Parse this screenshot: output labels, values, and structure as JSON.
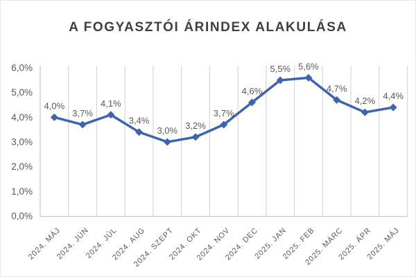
{
  "chart_data": {
    "type": "line",
    "title": "A FOGYASZTÓI ÁRINDEX ALAKULÁSA",
    "categories": [
      "2024. MÁJ",
      "2024. JÚN",
      "2024. JÚL",
      "2024. AUG",
      "2024. SZEPT",
      "2024. OKT",
      "2024. NOV",
      "2024. DEC",
      "2025. JAN",
      "2025. FEB",
      "2025. MÁRC",
      "2025. ÁPR",
      "2025. MÁJ"
    ],
    "values": [
      4.0,
      3.7,
      4.1,
      3.4,
      3.0,
      3.2,
      3.7,
      4.6,
      5.5,
      5.6,
      4.7,
      4.2,
      4.4
    ],
    "point_labels": [
      "4,0%",
      "3,7%",
      "4,1%",
      "3,4%",
      "3,0%",
      "3,2%",
      "3,7%",
      "4,6%",
      "5,5%",
      "5,6%",
      "4,7%",
      "4,2%",
      "4,4%"
    ],
    "xlabel": "",
    "ylabel": "",
    "y_axis": {
      "min": 0,
      "max": 6,
      "tick_labels_top_to_bottom": [
        "6,0%",
        "5,0%",
        "4,0%",
        "3,0%",
        "2,0%",
        "1,0%",
        "0,0%"
      ]
    },
    "grid": "vertical-only",
    "legend": "none",
    "colors": {
      "line": "#3e64ae",
      "marker": "#3e64ae",
      "gridline": "#d6d6d6",
      "axis_line": "#c9c9c9",
      "tick_label": "#595959",
      "data_label": "#595959",
      "title": "#3f3f3f"
    }
  }
}
